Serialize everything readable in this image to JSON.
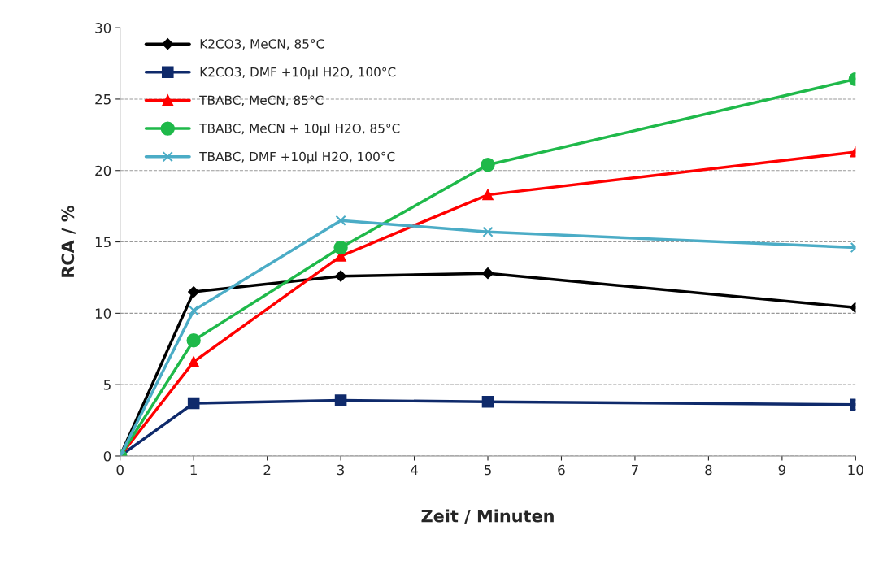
{
  "chart_data": {
    "type": "line",
    "xlabel": "Zeit / Minuten",
    "ylabel": "RCA / %",
    "x": [
      0,
      1,
      3,
      5,
      10
    ],
    "series": [
      {
        "name": "K2CO3, MeCN, 85°C",
        "color": "#000000",
        "marker": "diamond",
        "values": [
          0,
          11.5,
          12.6,
          12.8,
          10.4
        ]
      },
      {
        "name": "K2CO3, DMF +10µl H2O, 100°C",
        "color": "#0f2a6b",
        "marker": "square",
        "values": [
          0,
          3.7,
          3.9,
          3.8,
          3.6
        ]
      },
      {
        "name": "TBABC, MeCN, 85°C",
        "color": "#ff0000",
        "marker": "triangle",
        "values": [
          0,
          6.6,
          14.0,
          18.3,
          21.3
        ]
      },
      {
        "name": "TBABC, MeCN + 10µl H2O, 85°C",
        "color": "#1fb94a",
        "marker": "circle",
        "values": [
          0,
          8.1,
          14.6,
          20.4,
          26.4
        ]
      },
      {
        "name": "TBABC, DMF +10µl H2O, 100°C",
        "color": "#4bacc6",
        "marker": "cross",
        "values": [
          0,
          10.2,
          16.5,
          15.7,
          14.6
        ]
      }
    ],
    "xlim": [
      0,
      10
    ],
    "xticks": [
      0,
      1,
      2,
      3,
      4,
      5,
      6,
      7,
      8,
      9,
      10
    ],
    "ylim": [
      0,
      30
    ],
    "yticks": [
      0,
      5,
      10,
      15,
      20,
      25,
      30
    ],
    "grid": "y",
    "legend": "top left",
    "line_style": "solid"
  }
}
